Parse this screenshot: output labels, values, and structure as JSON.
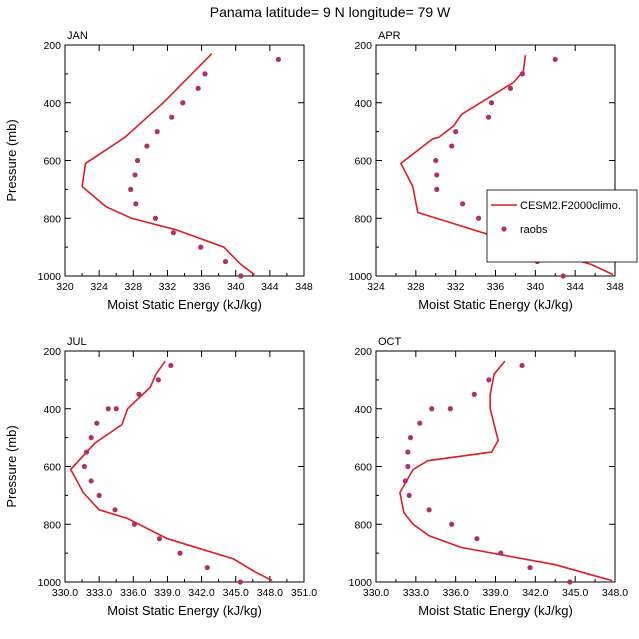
{
  "title": "Panama  latitude= 9 N longitude= 79 W",
  "colors": {
    "model": "#e01c24",
    "obs": "#b0306a"
  },
  "legend": {
    "placement": "right-middle of APR panel",
    "entries": [
      "CESM2.F2000climo.",
      "raobs"
    ]
  },
  "chart_data": [
    {
      "type": "line",
      "panel": "JAN",
      "xlabel": "Moist Static Energy (kJ/kg)",
      "ylabel": "Pressure (mb)",
      "xlim": [
        320,
        348
      ],
      "ylim": [
        200,
        1000
      ],
      "y_inverted": true,
      "xticks": [
        "320",
        "324",
        "328",
        "332",
        "336",
        "340",
        "344",
        "348"
      ],
      "yticks": [
        "200",
        "400",
        "600",
        "800",
        "1000"
      ],
      "series": [
        {
          "name": "CESM2.F2000climo.",
          "style": "line",
          "x": [
            342.2,
            340.6,
            338.6,
            333.0,
            327.8,
            324.8,
            322.0,
            322.4,
            327.0,
            331.5,
            337.2
          ],
          "y": [
            995,
            960,
            900,
            840,
            800,
            760,
            690,
            610,
            520,
            400,
            230
          ]
        },
        {
          "name": "raobs",
          "style": "markers",
          "x": [
            340.6,
            338.8,
            335.9,
            332.7,
            330.6,
            328.3,
            327.7,
            328.2,
            328.5,
            329.6,
            330.8,
            332.5,
            333.8,
            335.6,
            336.4,
            345.0
          ],
          "y": [
            1000,
            950,
            900,
            850,
            800,
            750,
            700,
            650,
            600,
            550,
            500,
            450,
            400,
            350,
            300,
            250
          ]
        }
      ]
    },
    {
      "type": "line",
      "panel": "APR",
      "xlabel": "Moist Static Energy (kJ/kg)",
      "ylabel": "",
      "xlim": [
        324,
        348
      ],
      "ylim": [
        200,
        1000
      ],
      "y_inverted": true,
      "xticks": [
        "324",
        "328",
        "332",
        "336",
        "340",
        "344",
        "348"
      ],
      "yticks": [
        "200",
        "400",
        "600",
        "800",
        "1000"
      ],
      "series": [
        {
          "name": "CESM2.F2000climo.",
          "style": "line",
          "x": [
            347.8,
            345.6,
            339.6,
            334.7,
            331.0,
            328.2,
            327.7,
            326.5,
            329.7,
            330.3,
            331.8,
            332.6,
            337.8,
            338.8,
            339.0
          ],
          "y": [
            995,
            960,
            900,
            850,
            810,
            780,
            690,
            610,
            525,
            520,
            480,
            440,
            330,
            290,
            235
          ]
        },
        {
          "name": "raobs",
          "style": "markers",
          "x": [
            342.8,
            340.2,
            338.1,
            335.9,
            334.3,
            332.7,
            330.1,
            330.1,
            330.0,
            331.6,
            332.0,
            335.3,
            335.6,
            337.5,
            338.7,
            342.0
          ],
          "y": [
            1000,
            950,
            900,
            850,
            800,
            750,
            700,
            650,
            600,
            550,
            500,
            450,
            400,
            350,
            300,
            250
          ]
        }
      ]
    },
    {
      "type": "line",
      "panel": "JUL",
      "xlabel": "Moist Static Energy (kJ/kg)",
      "ylabel": "Pressure (mb)",
      "xlim": [
        330,
        351
      ],
      "ylim": [
        200,
        1000
      ],
      "y_inverted": true,
      "xticks": [
        "330.0",
        "333.0",
        "336.0",
        "339.0",
        "342.0",
        "345.0",
        "348.0",
        "351.0"
      ],
      "yticks": [
        "200",
        "400",
        "600",
        "800",
        "1000"
      ],
      "series": [
        {
          "name": "CESM2.F2000climo.",
          "style": "line",
          "x": [
            348.2,
            346.7,
            344.8,
            339.0,
            335.5,
            333.0,
            331.6,
            330.5,
            332.6,
            335.0,
            335.5,
            337.5,
            338.0,
            338.8
          ],
          "y": [
            995,
            965,
            920,
            850,
            780,
            750,
            690,
            610,
            520,
            455,
            400,
            325,
            280,
            235
          ]
        },
        {
          "name": "raobs",
          "style": "markers",
          "x": [
            345.4,
            342.5,
            340.1,
            338.3,
            336.1,
            334.4,
            333.0,
            332.3,
            331.7,
            331.9,
            332.3,
            332.8,
            333.8,
            334.5,
            336.5,
            338.2,
            339.3
          ],
          "y": [
            1000,
            950,
            900,
            850,
            800,
            750,
            700,
            650,
            600,
            550,
            500,
            450,
            400,
            400,
            350,
            300,
            250
          ]
        }
      ]
    },
    {
      "type": "line",
      "panel": "OCT",
      "xlabel": "Moist Static Energy (kJ/kg)",
      "ylabel": "",
      "xlim": [
        330,
        348
      ],
      "ylim": [
        200,
        1000
      ],
      "y_inverted": true,
      "xticks": [
        "330.0",
        "333.0",
        "336.0",
        "339.0",
        "342.0",
        "345.0",
        "348.0"
      ],
      "yticks": [
        "200",
        "400",
        "600",
        "800",
        "1000"
      ],
      "series": [
        {
          "name": "CESM2.F2000climo.",
          "style": "line",
          "x": [
            347.8,
            346.2,
            343.5,
            336.4,
            334.0,
            332.8,
            332.1,
            331.8,
            332.8,
            333.9,
            338.7,
            339.2,
            338.6,
            338.6,
            338.9,
            339.7
          ],
          "y": [
            995,
            975,
            940,
            880,
            840,
            800,
            760,
            690,
            610,
            580,
            550,
            510,
            400,
            350,
            280,
            235
          ]
        },
        {
          "name": "raobs",
          "style": "markers",
          "x": [
            344.6,
            341.6,
            339.4,
            337.6,
            335.7,
            334.0,
            332.5,
            332.2,
            332.4,
            332.4,
            332.6,
            333.3,
            334.2,
            335.6,
            337.4,
            338.5,
            341.0
          ],
          "y": [
            1000,
            950,
            900,
            850,
            800,
            750,
            700,
            650,
            600,
            550,
            500,
            450,
            400,
            400,
            350,
            300,
            250
          ]
        }
      ]
    }
  ]
}
